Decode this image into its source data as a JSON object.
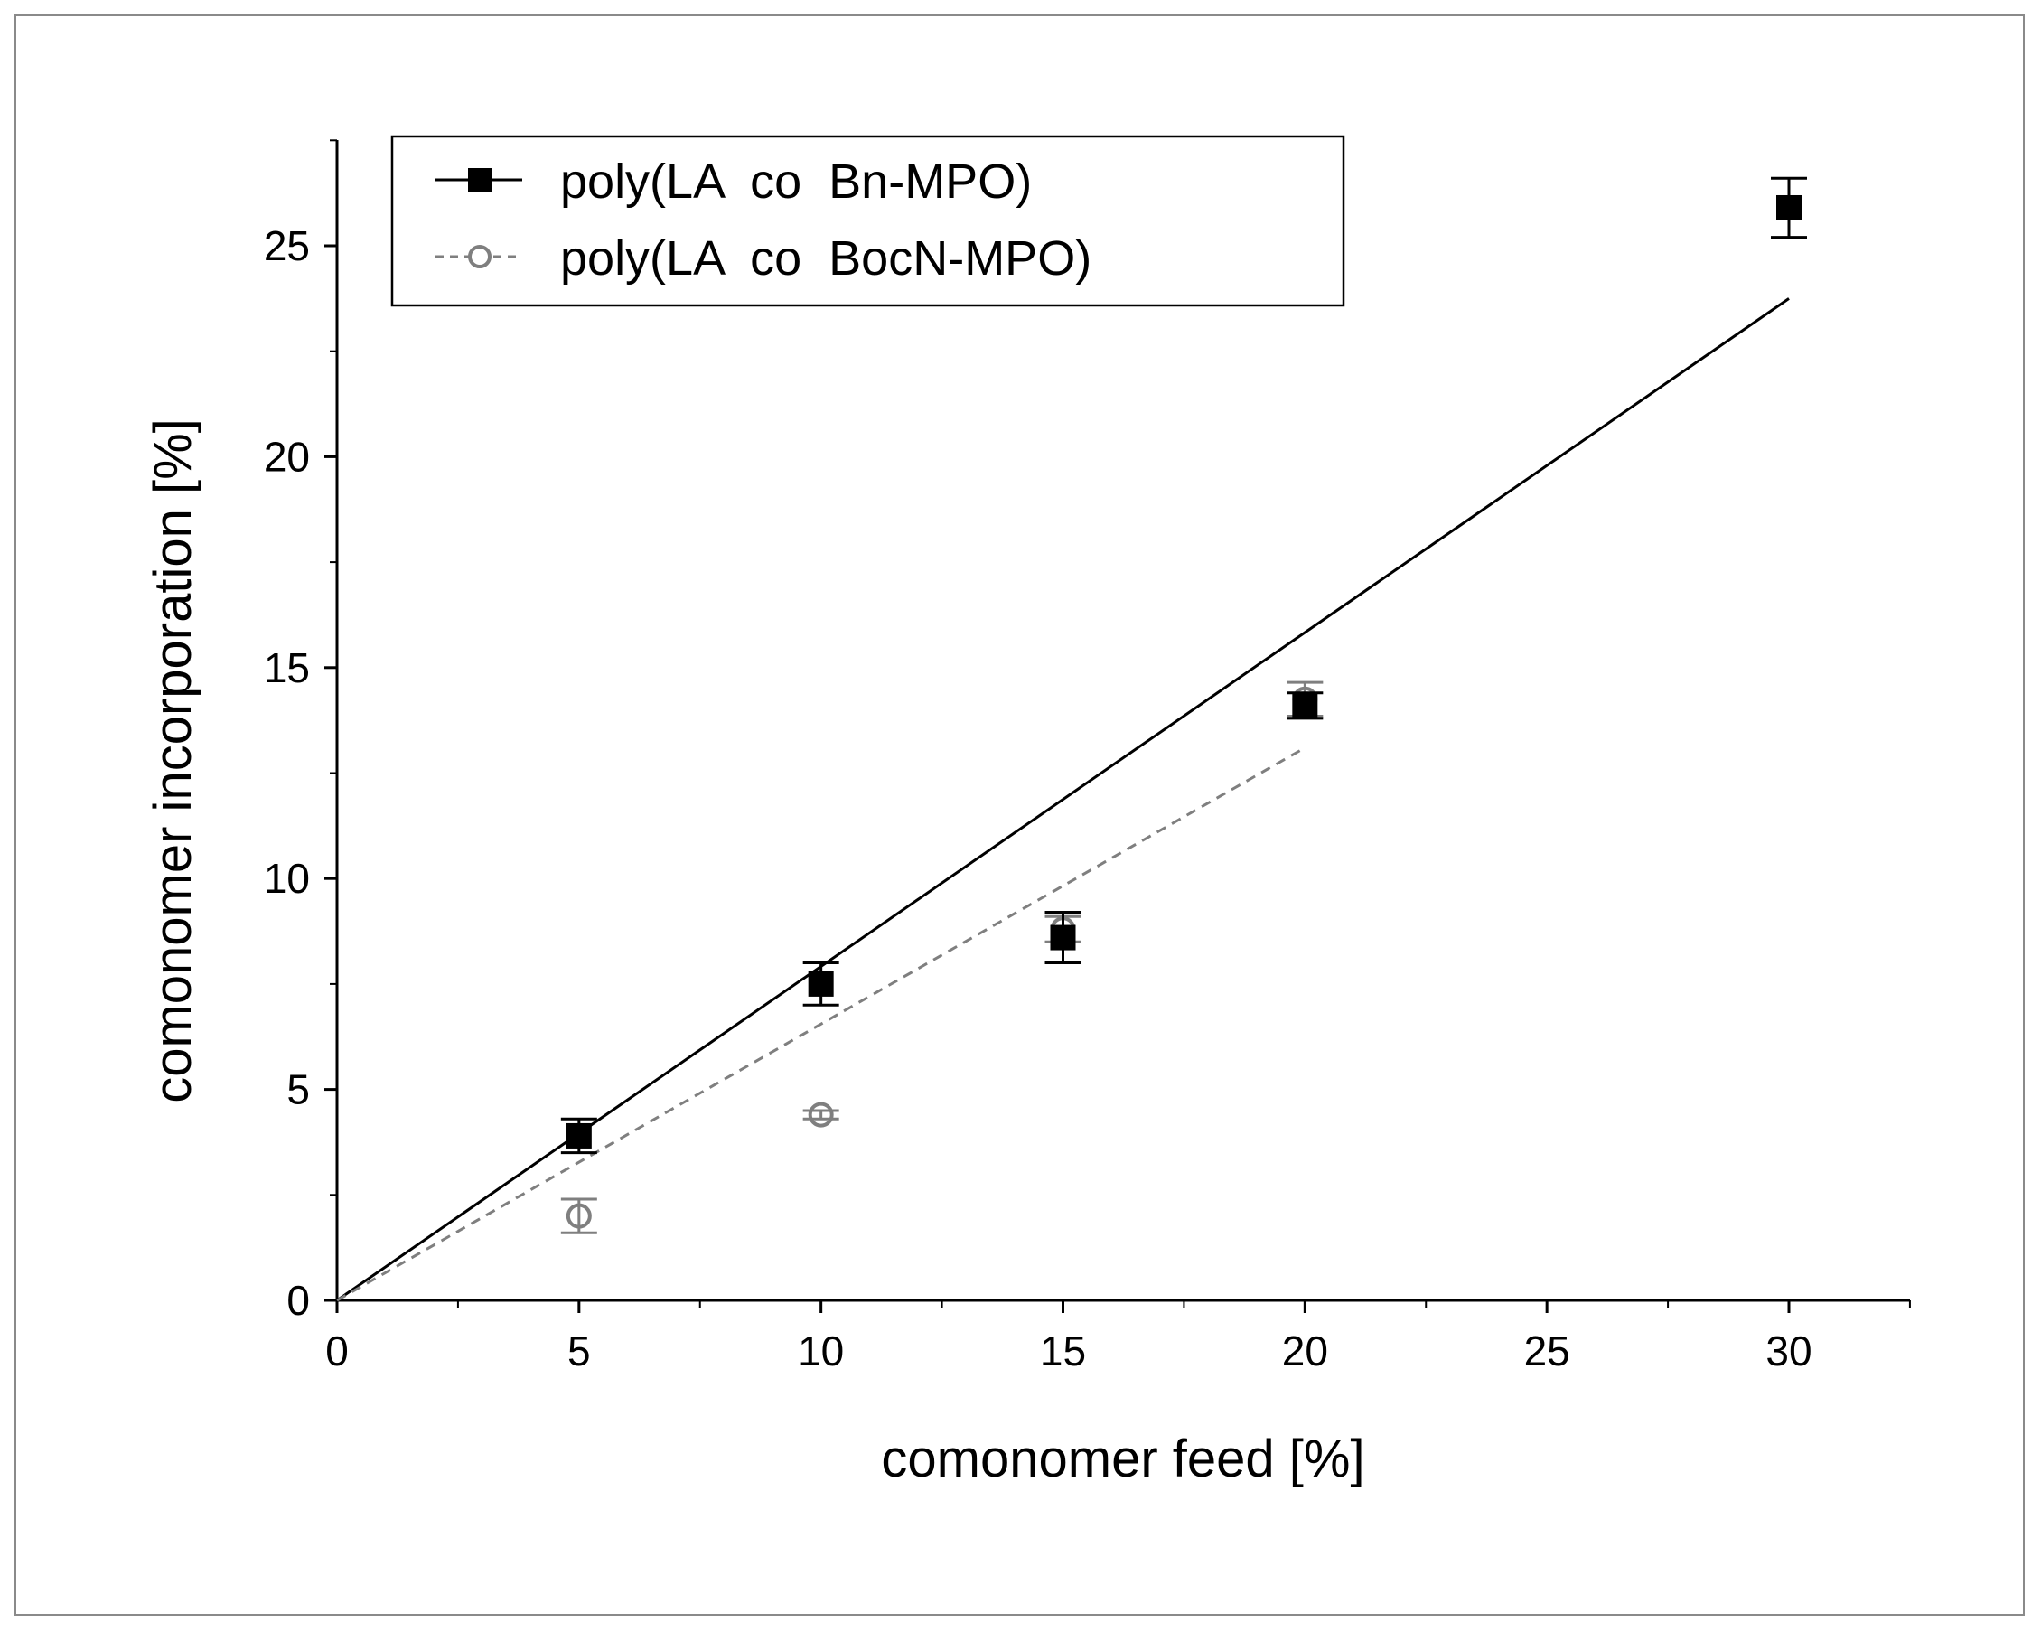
{
  "chart_data": {
    "type": "scatter",
    "title": "",
    "xlabel": "comonomer feed [%]",
    "ylabel": "comonomer incorporation [%]",
    "xlim": [
      0,
      32.5
    ],
    "ylim": [
      0,
      27.5
    ],
    "x_ticks": [
      0,
      5,
      10,
      15,
      20,
      25,
      30
    ],
    "y_ticks": [
      0,
      5,
      10,
      15,
      20,
      25
    ],
    "grid": false,
    "legend_position": "top-left",
    "series": [
      {
        "name": "poly(LA  co  Bn-MPO)",
        "marker": "filled-square",
        "color": "#000000",
        "line_style": "solid",
        "points": [
          {
            "x": 5,
            "y": 3.9,
            "err": 0.4
          },
          {
            "x": 10,
            "y": 7.5,
            "err": 0.5
          },
          {
            "x": 15,
            "y": 8.6,
            "err": 0.6
          },
          {
            "x": 20,
            "y": 14.1,
            "err": 0.3
          },
          {
            "x": 30,
            "y": 25.9,
            "err": 0.7
          }
        ],
        "fit": {
          "x": [
            0,
            30
          ],
          "y": [
            0,
            23.75
          ]
        }
      },
      {
        "name": "poly(LA  co  BocN-MPO)",
        "marker": "open-circle",
        "color": "#7f7f7f",
        "line_style": "dashed",
        "points": [
          {
            "x": 5,
            "y": 2.0,
            "err": 0.4
          },
          {
            "x": 10,
            "y": 4.4,
            "err": 0.1
          },
          {
            "x": 15,
            "y": 8.8,
            "err": 0.3
          },
          {
            "x": 20,
            "y": 14.25,
            "err": 0.4
          }
        ],
        "fit": {
          "x": [
            0,
            20
          ],
          "y": [
            0,
            13.1
          ]
        }
      }
    ]
  }
}
